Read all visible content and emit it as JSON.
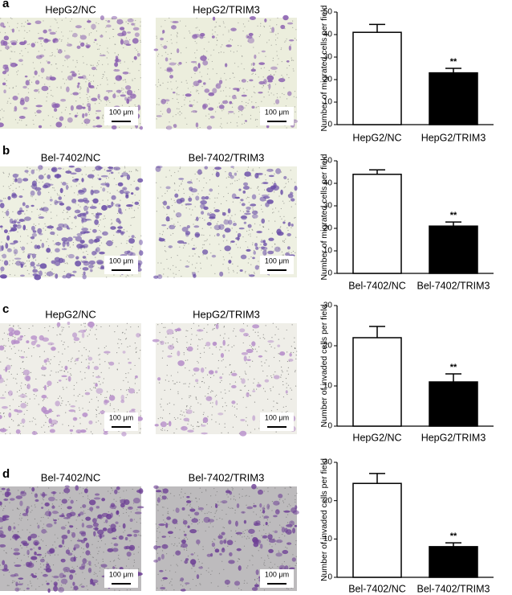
{
  "panels": [
    {
      "letter": "a",
      "images": [
        {
          "label": "HepG2/NC",
          "scale_bar": "100 μm"
        },
        {
          "label": "HepG2/TRIM3",
          "scale_bar": "100 μm"
        }
      ]
    },
    {
      "letter": "b",
      "images": [
        {
          "label": "Bel-7402/NC",
          "scale_bar": "100 μm"
        },
        {
          "label": "Bel-7402/TRIM3",
          "scale_bar": "100 μm"
        }
      ]
    },
    {
      "letter": "c",
      "images": [
        {
          "label": "HepG2/NC",
          "scale_bar": "100 μm"
        },
        {
          "label": "HepG2/TRIM3",
          "scale_bar": "100 μm"
        }
      ]
    },
    {
      "letter": "d",
      "images": [
        {
          "label": "Bel-7402/NC",
          "scale_bar": "100 μm"
        },
        {
          "label": "Bel-7402/TRIM3",
          "scale_bar": "100 μm"
        }
      ]
    }
  ],
  "chart_data": [
    {
      "type": "bar",
      "ylabel": "Number of migrated cells per field",
      "categories": [
        "HepG2/NC",
        "HepG2/TRIM3"
      ],
      "values": [
        41,
        23
      ],
      "errors": [
        3.5,
        2
      ],
      "colors": [
        "#ffffff",
        "#000000"
      ],
      "significance": [
        null,
        "**"
      ],
      "ylim": [
        0,
        50
      ],
      "yticks": [
        0,
        10,
        20,
        30,
        40,
        50
      ]
    },
    {
      "type": "bar",
      "ylabel": "Number of migrated cells per field",
      "categories": [
        "Bel-7402/NC",
        "Bel-7402/TRIM3"
      ],
      "values": [
        44,
        21
      ],
      "errors": [
        2,
        1.8
      ],
      "colors": [
        "#ffffff",
        "#000000"
      ],
      "significance": [
        null,
        "**"
      ],
      "ylim": [
        0,
        50
      ],
      "yticks": [
        0,
        10,
        20,
        30,
        40,
        50
      ]
    },
    {
      "type": "bar",
      "ylabel": "Number of invaded cells per field",
      "categories": [
        "HepG2/NC",
        "HepG2/TRIM3"
      ],
      "values": [
        22,
        11
      ],
      "errors": [
        2.8,
        2
      ],
      "colors": [
        "#ffffff",
        "#000000"
      ],
      "significance": [
        null,
        "**"
      ],
      "ylim": [
        0,
        30
      ],
      "yticks": [
        0,
        10,
        20,
        30
      ]
    },
    {
      "type": "bar",
      "ylabel": "Number of invaded cells per field",
      "categories": [
        "Bel-7402/NC",
        "Bel-7402/TRIM3"
      ],
      "values": [
        24.5,
        8
      ],
      "errors": [
        2.6,
        1
      ],
      "colors": [
        "#ffffff",
        "#000000"
      ],
      "significance": [
        null,
        "**"
      ],
      "ylim": [
        0,
        30
      ],
      "yticks": [
        0,
        10,
        20,
        30
      ]
    }
  ]
}
